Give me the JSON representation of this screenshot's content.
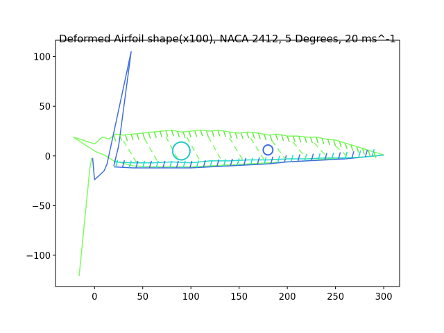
{
  "chart_data": {
    "type": "line",
    "title": "Deformed Airfoil shape(x100), NACA 2412, 5 Degrees, 20 ms^-1",
    "xlabel": "",
    "ylabel": "",
    "xlim": [
      -40.5,
      316.5
    ],
    "ylim": [
      -131.5,
      116.5
    ],
    "x_ticks": [
      0,
      50,
      100,
      150,
      200,
      250,
      300
    ],
    "x_tick_labels": [
      "0",
      "50",
      "100",
      "150",
      "200",
      "250",
      "300"
    ],
    "y_ticks": [
      -100,
      -50,
      0,
      50,
      100
    ],
    "y_tick_labels": [
      "−100",
      "−50",
      "0",
      "50",
      "100"
    ],
    "grid": false,
    "colors": {
      "deformed": "#7dfc5f",
      "deformed_dark": "#6be54a",
      "mesh_blue": "#3f6de0",
      "mesh_cyan": "#25d8c8",
      "spar": "#22c9c9",
      "axis": "#000000"
    },
    "series": [
      {
        "name": "upper-surface-deformed",
        "color": "#7dfc5f",
        "x": [
          -22,
          -12,
          0,
          8,
          15,
          22,
          30,
          40,
          50,
          60,
          70,
          80,
          90,
          100,
          110,
          120,
          130,
          140,
          150,
          160,
          170,
          180,
          190,
          200,
          210,
          220,
          230,
          240,
          250,
          260,
          270,
          280,
          290,
          300
        ],
        "y": [
          19,
          16,
          12,
          19,
          17,
          22,
          21,
          22,
          23,
          24,
          25,
          26,
          24,
          25,
          26,
          25,
          26,
          24,
          23,
          24,
          23,
          21,
          22,
          20,
          20,
          19,
          19,
          17,
          16,
          13,
          10,
          7,
          4,
          1
        ]
      },
      {
        "name": "lower-surface-deformed",
        "color": "#7dfc5f",
        "x": [
          -22,
          -8,
          2,
          10,
          20,
          40,
          60,
          80,
          100,
          120,
          140,
          160,
          180,
          200,
          220,
          240,
          260,
          280,
          300
        ],
        "y": [
          19,
          10,
          4,
          1,
          -5,
          -10,
          -11,
          -11,
          -11,
          -10,
          -9,
          -8,
          -7,
          -6,
          -5,
          -3,
          -2,
          -1,
          1
        ]
      },
      {
        "name": "lower-surface-mesh",
        "color": "#3f6de0",
        "x": [
          20,
          40,
          60,
          80,
          100,
          120,
          140,
          160,
          180,
          200,
          220,
          240,
          260,
          280,
          300
        ],
        "y": [
          -11,
          -12,
          -12,
          -12,
          -12,
          -11,
          -10,
          -9,
          -8,
          -6,
          -5,
          -4,
          -3,
          -1,
          1
        ]
      },
      {
        "name": "upper-surface-mesh",
        "color": "#25d8c8",
        "x": [
          20,
          40,
          60,
          80,
          100,
          120,
          140,
          160,
          180,
          200,
          220,
          240,
          260,
          280,
          300
        ],
        "y": [
          -6,
          -7,
          -7,
          -6,
          -7,
          -5,
          -5,
          -4,
          -4,
          -3,
          -3,
          -2,
          -2,
          -1,
          1
        ]
      },
      {
        "name": "deformed-strut-blue",
        "color": "#3f6de0",
        "x": [
          -2,
          0,
          10,
          13,
          38,
          25,
          20
        ],
        "y": [
          -2,
          -24,
          -15,
          -8,
          105,
          10,
          -10
        ]
      },
      {
        "name": "deformed-strut-green",
        "color": "#7dfc5f",
        "x": [
          -16,
          -5,
          -3
        ],
        "y": [
          -121,
          -14,
          -2
        ]
      }
    ],
    "spars": [
      {
        "name": "main-spar",
        "cx": 90,
        "cy": 5,
        "r": 9,
        "color": "#22c9c9"
      },
      {
        "name": "rear-spar",
        "cx": 180,
        "cy": 6,
        "r": 5,
        "color": "#3f6de0"
      }
    ]
  }
}
